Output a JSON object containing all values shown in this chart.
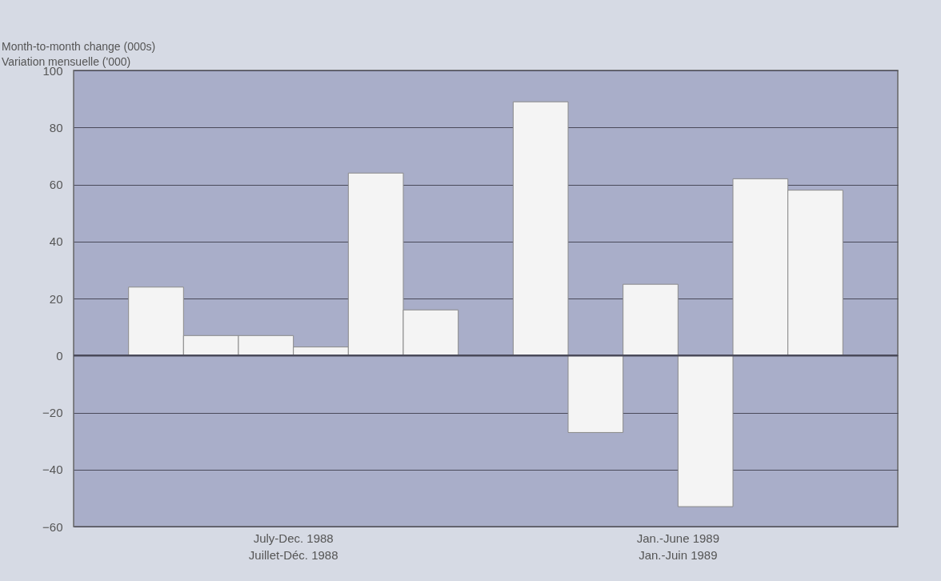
{
  "chart_data": {
    "type": "bar",
    "ylabel": "Month-to-month change (000s)\nVariation mensuelle ('000)",
    "categories": [
      null,
      null,
      null,
      null,
      null,
      null,
      null,
      null,
      null,
      null,
      null,
      null,
      null,
      null,
      null
    ],
    "values": [
      null,
      24,
      7,
      7,
      3,
      64,
      16,
      null,
      89,
      -27,
      25,
      -53,
      62,
      58,
      null
    ],
    "color": "#f4f4f4",
    "ylim": [
      -60,
      100
    ],
    "yticks": [
      -60,
      -40,
      -20,
      0,
      20,
      40,
      60,
      80,
      100
    ],
    "grid": "y",
    "tick_labels": "y",
    "annotations": [
      "July-Dec. 1988\nJuillet-Déc. 1988",
      "Jan.-June 1989\nJan.-Juin 1989"
    ]
  }
}
